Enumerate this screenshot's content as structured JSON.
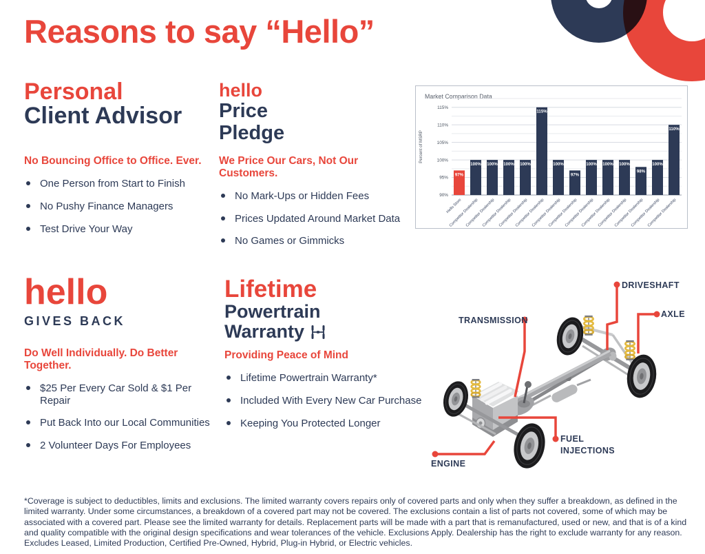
{
  "page": {
    "title": "Reasons to say “Hello”"
  },
  "colors": {
    "accent_red": "#e8463b",
    "navy": "#2d3a56",
    "overlap_maroon": "#7b1f2f",
    "spring_yellow": "#e4ba3f"
  },
  "sections": {
    "personal": {
      "title_accent": "Personal",
      "title_main": "Client Advisor",
      "subtitle": "No Bouncing Office to Office. Ever.",
      "bullets": [
        "One Person from Start to Finish",
        "No Pushy Finance Managers",
        "Test Drive Your Way"
      ]
    },
    "price_pledge": {
      "brand": "hello",
      "title_line1": "Price",
      "title_line2": "Pledge",
      "subtitle": "We Price Our Cars, Not Our Customers.",
      "bullets": [
        "No Mark-Ups or Hidden Fees",
        "Prices Updated Around Market Data",
        "No Games or Gimmicks"
      ]
    },
    "gives_back": {
      "brand": "hello",
      "subbrand": "GIVES BACK",
      "subtitle": "Do Well Individually. Do Better Together.",
      "bullets": [
        "$25 Per Every Car Sold & $1 Per Repair",
        "Put Back Into our Local Communities",
        "2 Volunteer Days For Employees"
      ]
    },
    "warranty": {
      "title_accent": "Lifetime",
      "title_line1": "Powertrain",
      "title_line2": "Warranty",
      "icon": "powertrain-icon",
      "subtitle": "Providing Peace of Mind",
      "bullets": [
        "Lifetime Powertrain Warranty*",
        "Included With Every New Car Purchase",
        "Keeping You Protected Longer"
      ]
    }
  },
  "chart_data": {
    "type": "bar",
    "title": "Market Comparison Data",
    "ylabel": "Percent of MSRP",
    "ylim": [
      90,
      117.5
    ],
    "yticks_percent": [
      90,
      95,
      100,
      105,
      110,
      115
    ],
    "grid": true,
    "legend": false,
    "categories": [
      "Hello Store",
      "Competitor Dealership",
      "Competitor Dealership",
      "Competitor Dealership",
      "Competitor Dealership",
      "Competitor Dealership",
      "Competitor Dealership",
      "Competitor Dealership",
      "Competitor Dealership",
      "Competitor Dealership",
      "Competitor Dealership",
      "Competitor Dealership",
      "Competitor Dealership",
      "Competitor Dealership"
    ],
    "values": [
      97,
      100,
      100,
      100,
      100,
      115,
      100,
      97,
      100,
      100,
      100,
      98,
      100,
      110
    ],
    "value_label_suffix": "%",
    "highlight_index": 0,
    "highlight_color": "#e8463b",
    "bar_color": "#2d3a56"
  },
  "diagram": {
    "illustration": "car-chassis-powertrain",
    "labels": [
      {
        "text": "DRIVESHAFT"
      },
      {
        "text": "AXLE"
      },
      {
        "text": "TRANSMISSION"
      },
      {
        "text": "FUEL INJECTIONS"
      },
      {
        "text": "ENGINE"
      }
    ]
  },
  "footnote": "*Coverage is subject to deductibles, limits and exclusions. The limited warranty covers repairs only of covered parts and only when they suffer a breakdown, as defined in the limited warranty. Under some circumstances, a breakdown of a covered part may not be covered. The exclusions contain a list of parts not covered, some of which may be associated with a covered part. Please see the limited warranty for details. Replacement parts will be made with a part that is remanufactured, used or new, and that is of a kind and quality compatible with the original design specifications and wear tolerances of the vehicle. Exclusions Apply. Dealership has the right to exclude warranty for any reason. Excludes Leased, Limited Production, Certified Pre-Owned, Hybrid, Plug-in Hybrid, or Electric vehicles."
}
